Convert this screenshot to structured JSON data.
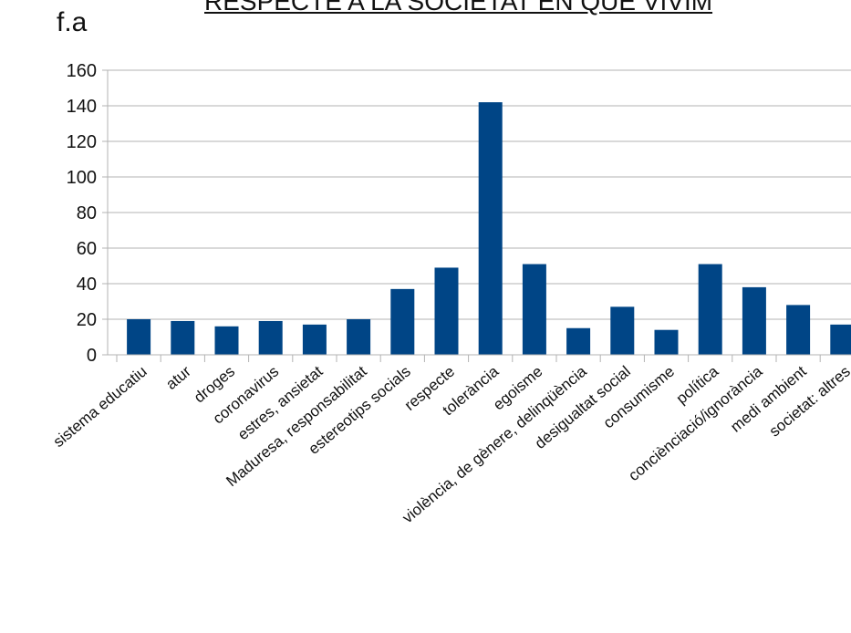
{
  "figure_label": "f.a",
  "chart_data": {
    "type": "bar",
    "title": "RESPECTE A LA SOCIETAT EN QUE VIVIM",
    "xlabel": "",
    "ylabel": "",
    "ylim": [
      0,
      160
    ],
    "yticks": [
      0,
      20,
      40,
      60,
      80,
      100,
      120,
      140,
      160
    ],
    "grid": true,
    "legend": "none",
    "bar_color": "#004586",
    "categories": [
      "sistema educatiu",
      "atur",
      "droges",
      "coronavirus",
      "estres, ansietat",
      "Maduresa, responsabilitat",
      "estereotips socials",
      "respecte",
      "tolerància",
      "egoisme",
      "violència, de gènere, delinqüència",
      "desigualtat social",
      "consumisme",
      "política",
      "conciènciació/ignorància",
      "medi ambient",
      "societat: altres"
    ],
    "values": [
      20,
      19,
      16,
      19,
      17,
      20,
      37,
      49,
      142,
      51,
      15,
      27,
      14,
      51,
      38,
      28,
      17
    ]
  }
}
